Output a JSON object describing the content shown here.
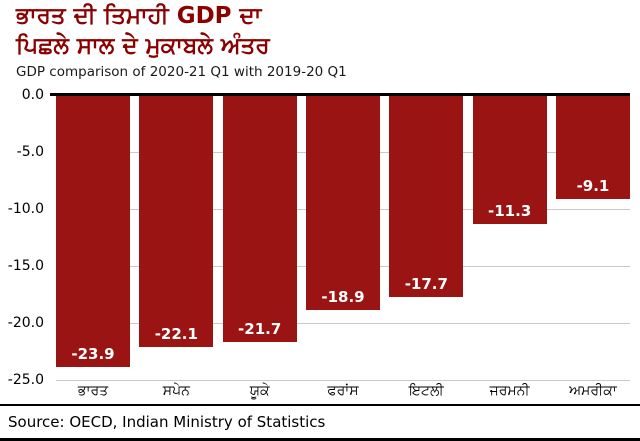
{
  "header": {
    "title_line1": "ਭਾਰਤ ਦੀ ਤਿਮਾਹੀ GDP ਦਾ",
    "title_line2": "ਪਿਛਲੇ ਸਾਲ ਦੇ ਮੁਕਾਬਲੇ ਅੰਤਰ",
    "subtitle": "GDP comparison of 2020-21 Q1 with 2019-20 Q1"
  },
  "chart_data": {
    "type": "bar",
    "title": "ਭਾਰਤ ਦੀ ਤਿਮਾਹੀ GDP ਦਾ ਪਿਛਲੇ ਸਾਲ ਦੇ ਮੁਕਾਬਲੇ ਅੰਤਰ",
    "subtitle": "GDP comparison of 2020-21 Q1 with 2019-20 Q1",
    "categories": [
      "ਭਾਰਤ",
      "ਸਪੇਨ",
      "ਯੂਕੇ",
      "ਫਰਾਂਸ",
      "ਇਟਲੀ",
      "ਜਰਮਨੀ",
      "ਅਮਰੀਕਾ"
    ],
    "values": [
      -23.9,
      -22.1,
      -21.7,
      -18.9,
      -17.7,
      -11.3,
      -9.1
    ],
    "value_labels": [
      "-23.9",
      "-22.1",
      "-21.7",
      "-18.9",
      "-17.7",
      "-11.3",
      "-9.1"
    ],
    "y_ticks": [
      "0.0",
      "-5.0",
      "-10.0",
      "-15.0",
      "-20.0",
      "-25.0"
    ],
    "ylim": [
      -25,
      0
    ],
    "xlabel": "",
    "ylabel": "",
    "grid": true,
    "legend_position": "none",
    "bar_color": "#9b1414"
  },
  "colors": {
    "title": "#8b0000",
    "bar": "#9b1414",
    "gridline": "#c9c9c9",
    "axis": "#000000"
  },
  "footer": {
    "source": "Source: OECD, Indian Ministry of Statistics"
  }
}
